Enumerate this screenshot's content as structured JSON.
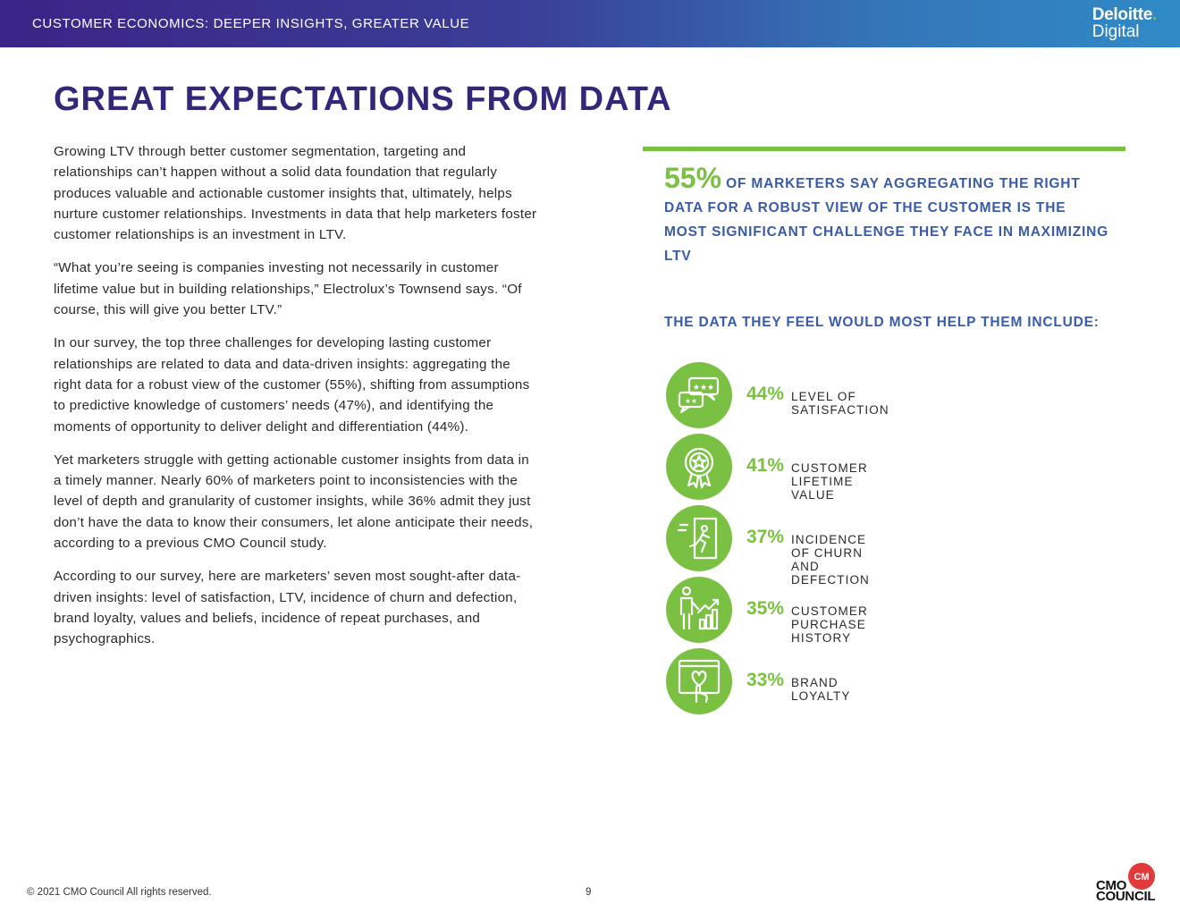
{
  "header": {
    "title": "CUSTOMER ECONOMICS: DEEPER INSIGHTS, GREATER VALUE",
    "logo_line1": "Deloitte",
    "logo_dot": ".",
    "logo_line2": "Digital"
  },
  "page_title": "GREAT EXPECTATIONS FROM DATA",
  "body_paragraphs": [
    "Growing LTV through better customer segmentation, targeting and relationships can’t happen without a solid data foundation that regularly produces valuable and actionable customer insights that, ultimately, helps nurture customer relationships. Investments in data that help marketers foster customer relationships is an investment in LTV.",
    "“What you’re seeing is companies investing not necessarily in customer lifetime value but in building relationships,” Electrolux’s Townsend says. “Of course, this will give you better LTV.”",
    "In our survey, the top three challenges for developing lasting customer relationships are related to data and data-driven insights: aggregating the right data for a robust view of the customer (55%), shifting from assumptions to predictive knowledge of customers’ needs (47%), and identifying the moments of opportunity to deliver delight and differentiation (44%).",
    "Yet marketers struggle with getting actionable customer insights from data in a timely manner. Nearly 60% of marketers point to inconsistencies with the level of depth and granularity of customer insights, while 36% admit they just don’t have the data to know their consumers, let alone anticipate their needs, according to a previous CMO Council study.",
    "According to our survey, here are marketers’ seven most sought-after data-driven insights: level of satisfaction, LTV, incidence of churn and defection, brand loyalty, values and beliefs, incidence of repeat purchases, and psychographics."
  ],
  "highlight": {
    "percent": "55%",
    "text": "OF MARKETERS SAY AGGREGATING THE RIGHT DATA FOR A ROBUST VIEW OF THE CUSTOMER IS THE MOST SIGNIFICANT CHALLENGE THEY FACE IN MAXIMIZING LTV"
  },
  "subheading": "THE DATA THEY FEEL WOULD MOST HELP THEM INCLUDE:",
  "stats": [
    {
      "percent": "44%",
      "label": "LEVEL OF SATISFACTION",
      "icon": "rating-chat-icon"
    },
    {
      "percent": "41%",
      "label": "CUSTOMER LIFETIME VALUE",
      "icon": "award-ribbon-icon"
    },
    {
      "percent": "37%",
      "label": "INCIDENCE OF CHURN AND DEFECTION",
      "icon": "exit-door-icon"
    },
    {
      "percent": "35%",
      "label": "CUSTOMER PURCHASE HISTORY",
      "icon": "growth-chart-icon"
    },
    {
      "percent": "33%",
      "label": "BRAND LOYALTY",
      "icon": "heart-hand-icon"
    }
  ],
  "footer": {
    "copyright": "© 2021 CMO Council  All rights reserved.",
    "page_number": "9",
    "logo_line1": "CMO",
    "logo_line2": "COUNCIL"
  },
  "colors": {
    "title_navy": "#33277a",
    "accent_green": "#7ac143",
    "accent_blue": "#3a5ca8"
  }
}
